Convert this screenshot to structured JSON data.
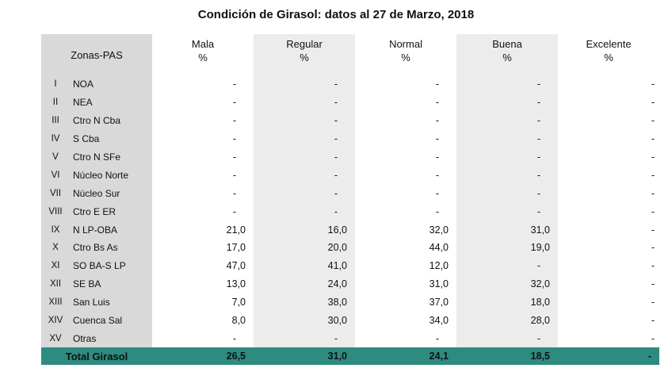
{
  "title": "Condición de Girasol: datos al 27 de Marzo, 2018",
  "header": {
    "zone": "Zonas-PAS",
    "columns": [
      {
        "name": "Mala",
        "unit": "%"
      },
      {
        "name": "Regular",
        "unit": "%"
      },
      {
        "name": "Normal",
        "unit": "%"
      },
      {
        "name": "Buena",
        "unit": "%"
      },
      {
        "name": "Excelente",
        "unit": "%"
      }
    ]
  },
  "rows": [
    {
      "num": "I",
      "zone": "NOA",
      "values": [
        "-",
        "-",
        "-",
        "-",
        "-"
      ]
    },
    {
      "num": "II",
      "zone": "NEA",
      "values": [
        "-",
        "-",
        "-",
        "-",
        "-"
      ]
    },
    {
      "num": "III",
      "zone": "Ctro N Cba",
      "values": [
        "-",
        "-",
        "-",
        "-",
        "-"
      ]
    },
    {
      "num": "IV",
      "zone": "S Cba",
      "values": [
        "-",
        "-",
        "-",
        "-",
        "-"
      ]
    },
    {
      "num": "V",
      "zone": "Ctro N SFe",
      "values": [
        "-",
        "-",
        "-",
        "-",
        "-"
      ]
    },
    {
      "num": "VI",
      "zone": "Núcleo Norte",
      "values": [
        "-",
        "-",
        "-",
        "-",
        "-"
      ]
    },
    {
      "num": "VII",
      "zone": "Núcleo Sur",
      "values": [
        "-",
        "-",
        "-",
        "-",
        "-"
      ]
    },
    {
      "num": "VIII",
      "zone": "Ctro E ER",
      "values": [
        "-",
        "-",
        "-",
        "-",
        "-"
      ]
    },
    {
      "num": "IX",
      "zone": "N LP-OBA",
      "values": [
        "21,0",
        "16,0",
        "32,0",
        "31,0",
        "-"
      ]
    },
    {
      "num": "X",
      "zone": "Ctro Bs As",
      "values": [
        "17,0",
        "20,0",
        "44,0",
        "19,0",
        "-"
      ]
    },
    {
      "num": "XI",
      "zone": "SO BA-S LP",
      "values": [
        "47,0",
        "41,0",
        "12,0",
        "-",
        "-"
      ]
    },
    {
      "num": "XII",
      "zone": "SE BA",
      "values": [
        "13,0",
        "24,0",
        "31,0",
        "32,0",
        "-"
      ]
    },
    {
      "num": "XIII",
      "zone": "San Luis",
      "values": [
        "7,0",
        "38,0",
        "37,0",
        "18,0",
        "-"
      ]
    },
    {
      "num": "XIV",
      "zone": "Cuenca Sal",
      "values": [
        "8,0",
        "30,0",
        "34,0",
        "28,0",
        "-"
      ]
    },
    {
      "num": "XV",
      "zone": "Otras",
      "values": [
        "-",
        "-",
        "-",
        "-",
        "-"
      ]
    }
  ],
  "total": {
    "label": "Total Girasol",
    "values": [
      "26,5",
      "31,0",
      "24,1",
      "18,5",
      "-"
    ]
  },
  "colors": {
    "total_row": "#2e8b80",
    "zone_shade": "#d9d9d9",
    "alt_shade": "#ececec"
  }
}
